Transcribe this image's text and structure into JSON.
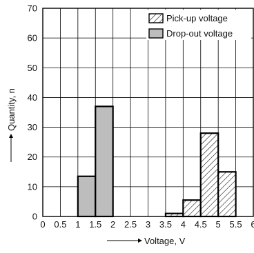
{
  "chart_data": {
    "type": "bar",
    "title": "",
    "xlabel": "Voltage, V",
    "ylabel": "Quantity, n",
    "xlim": [
      0,
      6
    ],
    "ylim": [
      0,
      70
    ],
    "x_ticks": [
      "0",
      "0.5",
      "1",
      "1.5",
      "2",
      "2.5",
      "3",
      "3.5",
      "4",
      "4.5",
      "5",
      "5.5",
      "6"
    ],
    "y_ticks": [
      "0",
      "10",
      "20",
      "30",
      "40",
      "50",
      "60",
      "70"
    ],
    "grid": true,
    "legend_position": "top-right",
    "series": [
      {
        "name": "Pick-up voltage",
        "fill": "hatched",
        "bins": [
          {
            "x0": 3.5,
            "x1": 4.0,
            "value": 1
          },
          {
            "x0": 4.0,
            "x1": 4.5,
            "value": 5.5
          },
          {
            "x0": 4.5,
            "x1": 5.0,
            "value": 28
          },
          {
            "x0": 5.0,
            "x1": 5.5,
            "value": 15
          }
        ]
      },
      {
        "name": "Drop-out voltage",
        "fill": "#bdbdbd",
        "bins": [
          {
            "x0": 1.0,
            "x1": 1.5,
            "value": 13.5
          },
          {
            "x0": 1.5,
            "x1": 2.0,
            "value": 37
          }
        ]
      }
    ]
  }
}
